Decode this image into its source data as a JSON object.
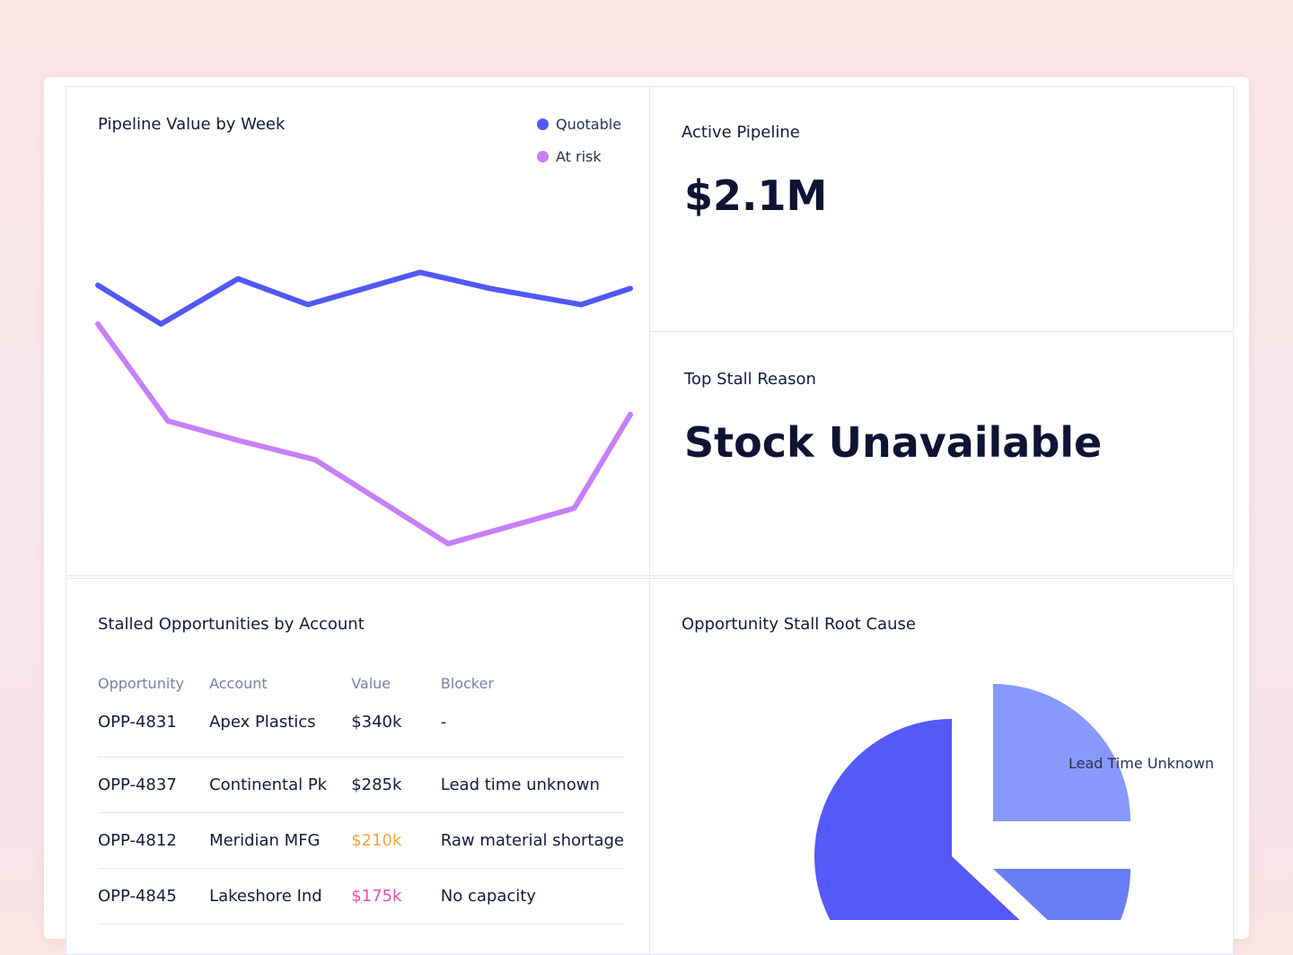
{
  "colors": {
    "quotable": "#5258f5",
    "at_risk": "#c77ff7",
    "pie_primary": "#5459f8",
    "pie_light": "#8799fa",
    "pie_mid": "#6a7ef3"
  },
  "chart_panel": {
    "title": "Pipeline Value by Week",
    "legend": [
      {
        "label": "Quotable",
        "color": "#5258f5"
      },
      {
        "label": "At risk",
        "color": "#c77ff7"
      }
    ]
  },
  "chart_data": {
    "type": "line",
    "title": "Pipeline Value by Week",
    "xlabel": "",
    "ylabel": "",
    "grid": false,
    "legend_position": "top-right",
    "x": [
      0,
      1,
      2,
      3,
      4,
      5,
      6,
      7
    ],
    "ylim": [
      0,
      100
    ],
    "series": [
      {
        "name": "Quotable",
        "x": [
          0,
          0.9,
          2.0,
          3.0,
          4.6,
          5.6,
          6.9,
          7.6
        ],
        "values": [
          76,
          70,
          77,
          73,
          78,
          75.5,
          73,
          75.5
        ]
      },
      {
        "name": "At risk",
        "x": [
          0,
          1.0,
          2.0,
          3.1,
          5.0,
          6.8,
          7.6
        ],
        "values": [
          70,
          55,
          52,
          49,
          36,
          41.5,
          56
        ]
      }
    ]
  },
  "active_pipeline": {
    "label": "Active Pipeline",
    "value": "$2.1M"
  },
  "top_stall": {
    "label": "Top Stall Reason",
    "value": "Stock Unavailable"
  },
  "table_panel": {
    "title": "Stalled Opportunities by Account",
    "columns": [
      "Opportunity",
      "Account",
      "Value",
      "Blocker"
    ],
    "rows": [
      {
        "opportunity": "OPP-4831",
        "account": "Apex Plastics",
        "value": "$340k",
        "blocker": "-"
      },
      {
        "opportunity": "OPP-4837",
        "account": "Continental Pk",
        "value": "$285k",
        "blocker": "Lead time unknown"
      },
      {
        "opportunity": "OPP-4812",
        "account": "Meridian MFG",
        "value": "$210k",
        "blocker": "Raw material shortage"
      },
      {
        "opportunity": "OPP-4845",
        "account": "Lakeshore Ind",
        "value": "$175k",
        "blocker": "No capacity"
      }
    ]
  },
  "pie_panel": {
    "title": "Opportunity Stall Root Cause",
    "label_lead_time": "Lead Time Unknown"
  },
  "pie_data": {
    "type": "pie",
    "slices": [
      {
        "name": "Lead Time Unknown",
        "value": 25,
        "color": "#8799fa"
      },
      {
        "name": "",
        "value": 12,
        "color": "#6a7ef3"
      },
      {
        "name": "",
        "value": 63,
        "color": "#5459f8"
      }
    ]
  }
}
